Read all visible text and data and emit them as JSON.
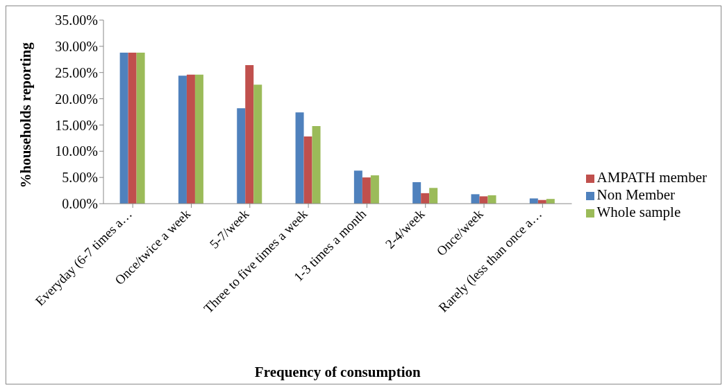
{
  "chart_data": {
    "type": "bar",
    "xlabel": "Frequency of consumption",
    "ylabel": "%households reporting",
    "categories": [
      "Everyday (6-7 times a…",
      "Once/twice a week",
      "5-7/week",
      "Three to five times a week",
      "1-3 times a month",
      "2-4/week",
      "Once/week",
      "Rarely (less than once a…"
    ],
    "series": [
      {
        "name": "Non Member",
        "color": "#4f81bd",
        "values": [
          28.8,
          24.4,
          18.2,
          17.4,
          6.3,
          4.1,
          1.8,
          1.0
        ]
      },
      {
        "name": "AMPATH member",
        "color": "#c0504d",
        "values": [
          28.8,
          24.6,
          26.4,
          12.8,
          5.0,
          2.0,
          1.4,
          0.7
        ]
      },
      {
        "name": "Whole sample",
        "color": "#9bbb59",
        "values": [
          28.8,
          24.6,
          22.7,
          14.8,
          5.4,
          3.0,
          1.6,
          0.9
        ]
      }
    ],
    "ylim": [
      0,
      35
    ],
    "yticks": [
      {
        "value": 0,
        "label": "0.00%"
      },
      {
        "value": 5,
        "label": "5.00%"
      },
      {
        "value": 10,
        "label": "10.00%"
      },
      {
        "value": 15,
        "label": "15.00%"
      },
      {
        "value": 20,
        "label": "20.00%"
      },
      {
        "value": 25,
        "label": "25.00%"
      },
      {
        "value": 30,
        "label": "30.00%"
      },
      {
        "value": 35,
        "label": "35.00%"
      }
    ],
    "grid": false,
    "legend": "right"
  }
}
